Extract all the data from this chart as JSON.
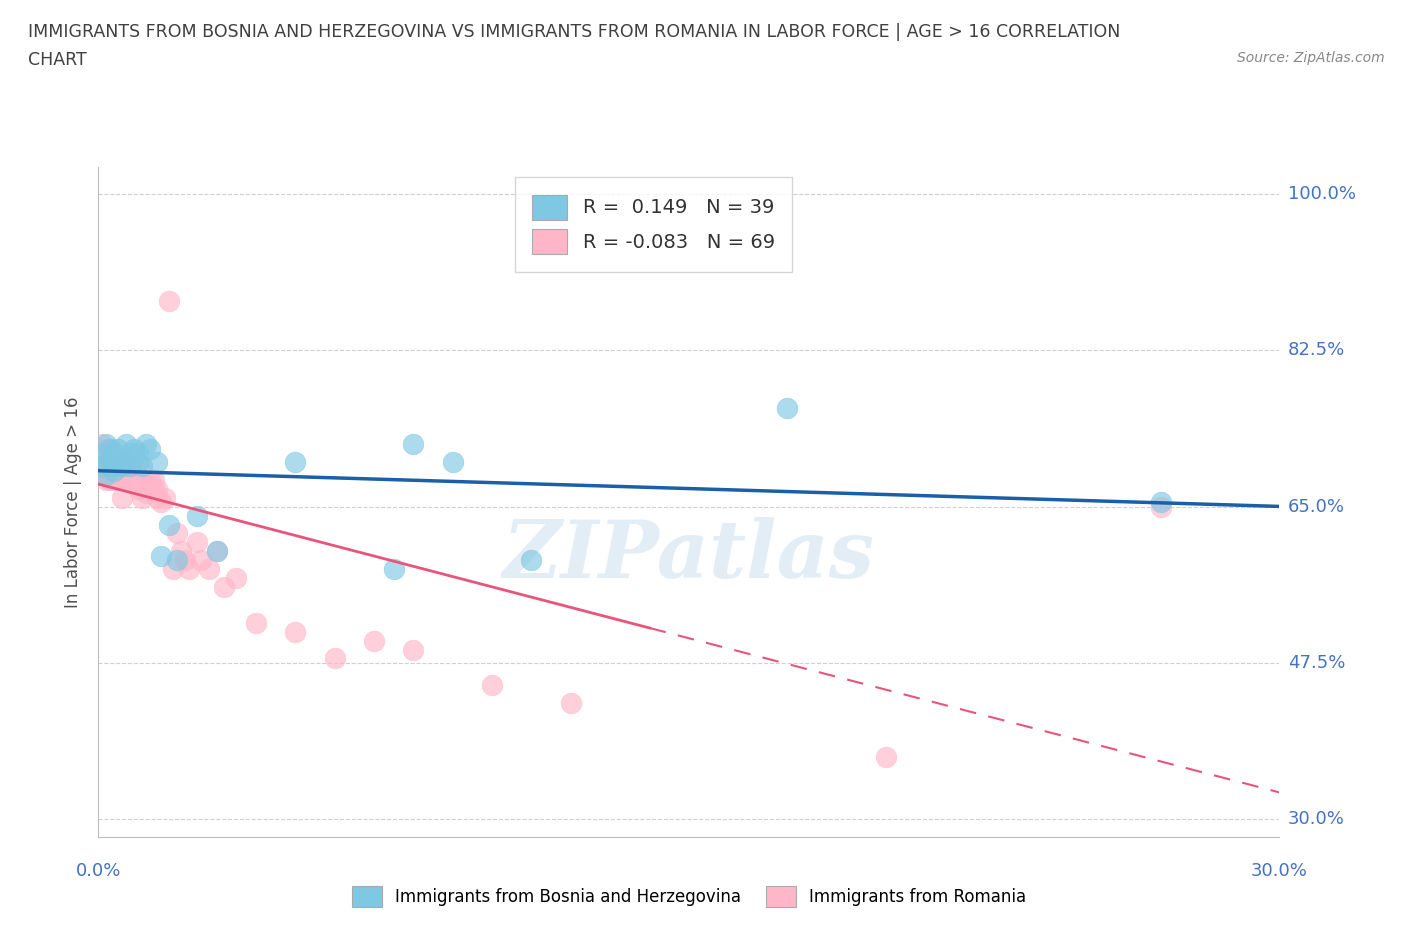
{
  "title_line1": "IMMIGRANTS FROM BOSNIA AND HERZEGOVINA VS IMMIGRANTS FROM ROMANIA IN LABOR FORCE | AGE > 16 CORRELATION",
  "title_line2": "CHART",
  "source": "Source: ZipAtlas.com",
  "ylabel": "In Labor Force | Age > 16",
  "xlim": [
    0.0,
    0.3
  ],
  "ylim": [
    0.28,
    1.03
  ],
  "yticks": [
    0.3,
    0.475,
    0.65,
    0.825,
    1.0
  ],
  "ytick_labels": [
    "30.0%",
    "47.5%",
    "65.0%",
    "82.5%",
    "100.0%"
  ],
  "r_bosnia": 0.149,
  "n_bosnia": 39,
  "r_romania": -0.083,
  "n_romania": 69,
  "color_bosnia": "#7ec8e3",
  "color_romania": "#ffb6c8",
  "trend_color_bosnia": "#1a5fa8",
  "trend_color_romania": "#e8547a",
  "bosnia_x": [
    0.001,
    0.001,
    0.002,
    0.002,
    0.002,
    0.003,
    0.003,
    0.003,
    0.004,
    0.004,
    0.004,
    0.005,
    0.005,
    0.005,
    0.006,
    0.006,
    0.007,
    0.007,
    0.008,
    0.008,
    0.009,
    0.01,
    0.01,
    0.011,
    0.012,
    0.013,
    0.015,
    0.016,
    0.018,
    0.02,
    0.025,
    0.03,
    0.05,
    0.075,
    0.08,
    0.09,
    0.11,
    0.175,
    0.27
  ],
  "bosnia_y": [
    0.695,
    0.71,
    0.7,
    0.685,
    0.72,
    0.7,
    0.695,
    0.715,
    0.69,
    0.705,
    0.71,
    0.695,
    0.7,
    0.715,
    0.7,
    0.695,
    0.72,
    0.7,
    0.695,
    0.71,
    0.715,
    0.7,
    0.71,
    0.695,
    0.72,
    0.715,
    0.7,
    0.595,
    0.63,
    0.59,
    0.64,
    0.6,
    0.7,
    0.58,
    0.72,
    0.7,
    0.59,
    0.76,
    0.655
  ],
  "romania_x": [
    0.001,
    0.001,
    0.001,
    0.002,
    0.002,
    0.002,
    0.002,
    0.002,
    0.003,
    0.003,
    0.003,
    0.003,
    0.003,
    0.004,
    0.004,
    0.004,
    0.004,
    0.004,
    0.005,
    0.005,
    0.005,
    0.005,
    0.006,
    0.006,
    0.006,
    0.006,
    0.007,
    0.007,
    0.007,
    0.008,
    0.008,
    0.008,
    0.009,
    0.009,
    0.01,
    0.01,
    0.01,
    0.011,
    0.011,
    0.012,
    0.012,
    0.013,
    0.014,
    0.014,
    0.015,
    0.015,
    0.016,
    0.017,
    0.018,
    0.019,
    0.02,
    0.021,
    0.022,
    0.023,
    0.025,
    0.026,
    0.028,
    0.03,
    0.032,
    0.035,
    0.04,
    0.05,
    0.06,
    0.07,
    0.08,
    0.1,
    0.12,
    0.2,
    0.27
  ],
  "romania_y": [
    0.7,
    0.685,
    0.72,
    0.695,
    0.705,
    0.68,
    0.7,
    0.715,
    0.69,
    0.695,
    0.68,
    0.705,
    0.715,
    0.7,
    0.685,
    0.695,
    0.68,
    0.71,
    0.695,
    0.685,
    0.7,
    0.68,
    0.695,
    0.68,
    0.66,
    0.7,
    0.695,
    0.68,
    0.7,
    0.685,
    0.695,
    0.68,
    0.68,
    0.695,
    0.67,
    0.68,
    0.695,
    0.68,
    0.66,
    0.68,
    0.665,
    0.68,
    0.67,
    0.68,
    0.66,
    0.67,
    0.655,
    0.66,
    0.88,
    0.58,
    0.62,
    0.6,
    0.59,
    0.58,
    0.61,
    0.59,
    0.58,
    0.6,
    0.56,
    0.57,
    0.52,
    0.51,
    0.48,
    0.5,
    0.49,
    0.45,
    0.43,
    0.37,
    0.65
  ],
  "watermark": "ZIPatlas",
  "background_color": "#ffffff",
  "grid_color": "#d0d0d0",
  "axis_label_color": "#4472c4",
  "title_color": "#404040"
}
